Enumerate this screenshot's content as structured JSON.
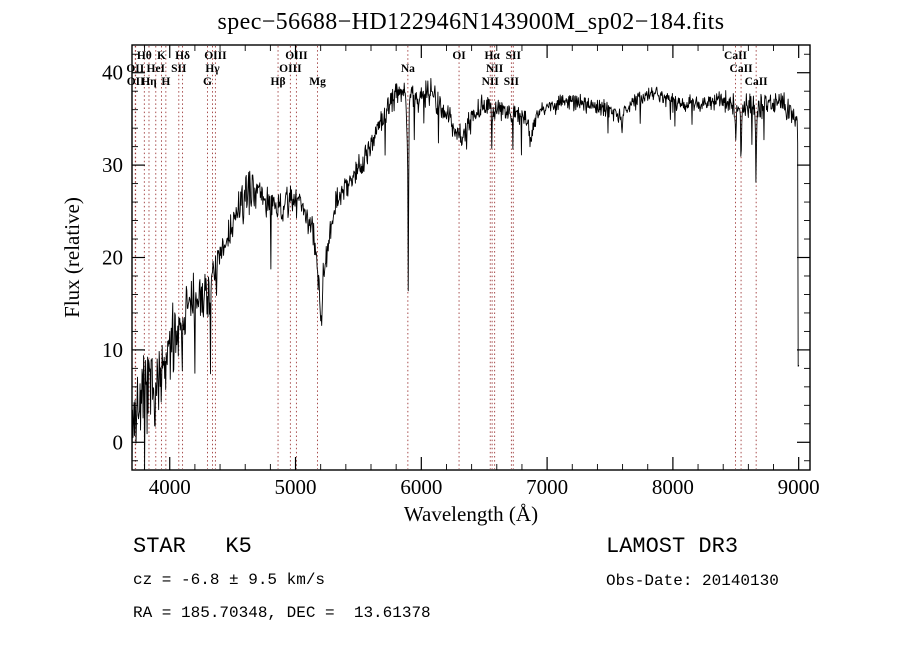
{
  "title": "spec−56688−HD122946N143900M_sp02−184.fits",
  "footer": {
    "left": {
      "class_label": "STAR   K5",
      "cz": "cz = -6.8 ± 9.5 km/s",
      "radec": "RA = 185.70348, DEC =  13.61378"
    },
    "right": {
      "survey": "LAMOST DR3",
      "obs_date": "Obs-Date: 20140130"
    }
  },
  "chart_data": {
    "type": "line",
    "title": "spec−56688−HD122946N143900M_sp02−184.fits",
    "xlabel": "Wavelength (Å)",
    "ylabel": "Flux (relative)",
    "xlim": [
      3700,
      9090
    ],
    "ylim": [
      -3,
      43
    ],
    "x_major_ticks": [
      4000,
      5000,
      6000,
      7000,
      8000,
      9000
    ],
    "x_minor_step": 200,
    "y_major_ticks": [
      0,
      10,
      20,
      30,
      40
    ],
    "y_minor_step": 2,
    "grid": false,
    "line_color": "#000000",
    "marker_line_color": "#9e3b3b",
    "sample_step_angstrom": 4,
    "noise_seed": 7,
    "continuum": [
      [
        3700,
        2.0
      ],
      [
        3740,
        3.5
      ],
      [
        3780,
        4.5
      ],
      [
        3820,
        5.0
      ],
      [
        3860,
        5.5
      ],
      [
        3900,
        6.5
      ],
      [
        3940,
        7.5
      ],
      [
        3980,
        9.0
      ],
      [
        4020,
        11.0
      ],
      [
        4060,
        12.5
      ],
      [
        4100,
        13.5
      ],
      [
        4140,
        14.5
      ],
      [
        4180,
        15.0
      ],
      [
        4220,
        15.5
      ],
      [
        4260,
        16.0
      ],
      [
        4300,
        16.5
      ],
      [
        4340,
        17.5
      ],
      [
        4380,
        19.0
      ],
      [
        4420,
        20.5
      ],
      [
        4460,
        22.0
      ],
      [
        4500,
        23.5
      ],
      [
        4540,
        24.8
      ],
      [
        4580,
        26.0
      ],
      [
        4620,
        27.0
      ],
      [
        4660,
        27.5
      ],
      [
        4700,
        27.3
      ],
      [
        4740,
        26.6
      ],
      [
        4780,
        25.8
      ],
      [
        4820,
        25.2
      ],
      [
        4860,
        25.0
      ],
      [
        4900,
        25.5
      ],
      [
        4940,
        26.0
      ],
      [
        4980,
        26.3
      ],
      [
        5020,
        26.2
      ],
      [
        5060,
        25.6
      ],
      [
        5100,
        24.5
      ],
      [
        5140,
        22.5
      ],
      [
        5180,
        17.5
      ],
      [
        5210,
        16.8
      ],
      [
        5240,
        20.0
      ],
      [
        5280,
        23.5
      ],
      [
        5320,
        25.5
      ],
      [
        5360,
        26.8
      ],
      [
        5400,
        27.8
      ],
      [
        5440,
        28.6
      ],
      [
        5480,
        29.4
      ],
      [
        5520,
        30.2
      ],
      [
        5560,
        31.2
      ],
      [
        5600,
        32.3
      ],
      [
        5640,
        33.5
      ],
      [
        5680,
        34.6
      ],
      [
        5720,
        35.6
      ],
      [
        5760,
        36.8
      ],
      [
        5800,
        37.8
      ],
      [
        5840,
        38.3
      ],
      [
        5880,
        38.0
      ],
      [
        5920,
        37.2
      ],
      [
        5960,
        37.0
      ],
      [
        6000,
        37.4
      ],
      [
        6040,
        37.8
      ],
      [
        6080,
        37.8
      ],
      [
        6120,
        37.2
      ],
      [
        6160,
        36.4
      ],
      [
        6200,
        35.6
      ],
      [
        6240,
        34.6
      ],
      [
        6280,
        33.4
      ],
      [
        6320,
        33.2
      ],
      [
        6360,
        34.0
      ],
      [
        6400,
        35.0
      ],
      [
        6440,
        35.8
      ],
      [
        6480,
        36.3
      ],
      [
        6520,
        36.2
      ],
      [
        6560,
        35.8
      ],
      [
        6600,
        36.0
      ],
      [
        6640,
        36.2
      ],
      [
        6680,
        36.0
      ],
      [
        6720,
        35.8
      ],
      [
        6760,
        35.8
      ],
      [
        6800,
        35.6
      ],
      [
        6840,
        34.6
      ],
      [
        6880,
        34.2
      ],
      [
        6920,
        35.4
      ],
      [
        6960,
        36.2
      ],
      [
        7000,
        36.5
      ],
      [
        7080,
        36.6
      ],
      [
        7160,
        36.9
      ],
      [
        7240,
        36.8
      ],
      [
        7320,
        36.5
      ],
      [
        7400,
        36.2
      ],
      [
        7480,
        36.1
      ],
      [
        7560,
        35.6
      ],
      [
        7640,
        36.2
      ],
      [
        7720,
        37.0
      ],
      [
        7800,
        37.8
      ],
      [
        7880,
        37.7
      ],
      [
        7960,
        37.2
      ],
      [
        8040,
        36.8
      ],
      [
        8120,
        36.6
      ],
      [
        8200,
        36.6
      ],
      [
        8280,
        36.8
      ],
      [
        8360,
        37.0
      ],
      [
        8440,
        36.9
      ],
      [
        8520,
        36.2
      ],
      [
        8600,
        36.5
      ],
      [
        8680,
        36.3
      ],
      [
        8760,
        36.8
      ],
      [
        8840,
        36.8
      ],
      [
        8920,
        36.2
      ],
      [
        9000,
        35.2
      ]
    ],
    "absorption_features": [
      {
        "c": 3934,
        "s": 5,
        "d": 2.0
      },
      {
        "c": 3970,
        "s": 5,
        "d": 2.0
      },
      {
        "c": 4102,
        "s": 5,
        "d": 2.0
      },
      {
        "c": 4227,
        "s": 4,
        "d": 2.0
      },
      {
        "c": 4310,
        "s": 8,
        "d": 1.5
      },
      {
        "c": 5205,
        "s": 6,
        "d": 3.5
      },
      {
        "c": 5890,
        "s": 7,
        "d": 4.5
      },
      {
        "c": 5897,
        "s": 2.5,
        "d": 19.0
      },
      {
        "c": 6122,
        "s": 3,
        "d": 2.0
      },
      {
        "c": 6360,
        "s": 2.5,
        "d": 3.0
      },
      {
        "c": 6563,
        "s": 5,
        "d": 2.5
      },
      {
        "c": 6870,
        "s": 7,
        "d": 2.0
      },
      {
        "c": 7594,
        "s": 9,
        "d": 1.8
      },
      {
        "c": 8498,
        "s": 4,
        "d": 3.5
      },
      {
        "c": 8542,
        "s": 4,
        "d": 5.5
      },
      {
        "c": 8662,
        "s": 4,
        "d": 5.0
      },
      {
        "c": 8998,
        "s": 2.5,
        "d": 37.0
      }
    ],
    "noise_envelope": [
      [
        3700,
        3.2
      ],
      [
        3900,
        2.6
      ],
      [
        4100,
        2.2
      ],
      [
        4300,
        1.7
      ],
      [
        4600,
        1.4
      ],
      [
        4900,
        1.2
      ],
      [
        5200,
        1.1
      ],
      [
        5500,
        1.0
      ],
      [
        5800,
        0.9
      ],
      [
        6100,
        0.85
      ],
      [
        6400,
        0.8
      ],
      [
        6700,
        0.75
      ],
      [
        7000,
        0.6
      ],
      [
        7400,
        0.55
      ],
      [
        7800,
        0.55
      ],
      [
        8200,
        0.6
      ],
      [
        8600,
        0.85
      ],
      [
        9000,
        0.9
      ]
    ],
    "spectral_lines": [
      {
        "label": "OII",
        "wavelength": 3726,
        "row": 2
      },
      {
        "label": "OII",
        "wavelength": 3729,
        "row": 3
      },
      {
        "label": "Hθ",
        "wavelength": 3798,
        "row": 1
      },
      {
        "label": "Hη",
        "wavelength": 3835,
        "row": 3
      },
      {
        "label": "HeI",
        "wavelength": 3889,
        "row": 2
      },
      {
        "label": "K",
        "wavelength": 3934,
        "row": 1
      },
      {
        "label": "H",
        "wavelength": 3969,
        "row": 3
      },
      {
        "label": "SII",
        "wavelength": 4072,
        "row": 2
      },
      {
        "label": "Hδ",
        "wavelength": 4102,
        "row": 1
      },
      {
        "label": "G",
        "wavelength": 4300,
        "row": 3
      },
      {
        "label": "Hγ",
        "wavelength": 4340,
        "row": 2
      },
      {
        "label": "OIII",
        "wavelength": 4363,
        "row": 1
      },
      {
        "label": "Hβ",
        "wavelength": 4861,
        "row": 3
      },
      {
        "label": "OIII",
        "wavelength": 4959,
        "row": 2
      },
      {
        "label": "OIII",
        "wavelength": 5007,
        "row": 1
      },
      {
        "label": "Mg",
        "wavelength": 5175,
        "row": 3
      },
      {
        "label": "Na",
        "wavelength": 5893,
        "row": 2
      },
      {
        "label": "OI",
        "wavelength": 6300,
        "row": 1
      },
      {
        "label": "NII",
        "wavelength": 6548,
        "row": 3
      },
      {
        "label": "Hα",
        "wavelength": 6563,
        "row": 1
      },
      {
        "label": "NII",
        "wavelength": 6583,
        "row": 2
      },
      {
        "label": "SII",
        "wavelength": 6716,
        "row": 3
      },
      {
        "label": "SII",
        "wavelength": 6731,
        "row": 1
      },
      {
        "label": "CaII",
        "wavelength": 8498,
        "row": 1
      },
      {
        "label": "CaII",
        "wavelength": 8542,
        "row": 2
      },
      {
        "label": "CaII",
        "wavelength": 8662,
        "row": 3
      }
    ]
  }
}
